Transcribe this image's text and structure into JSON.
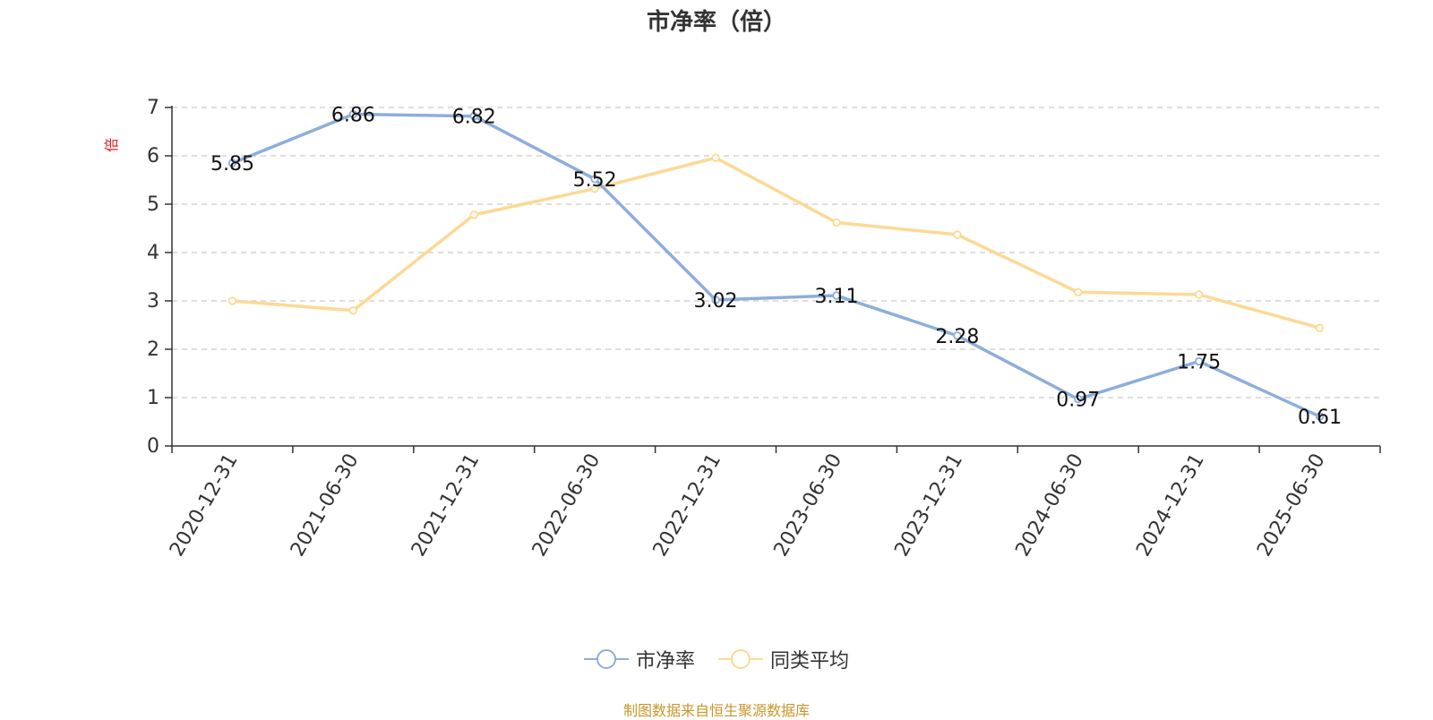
{
  "colors": {
    "series_pb": "#8eaedb",
    "series_avg": "#fcd994",
    "axis": "#333333",
    "grid": "#cccccc",
    "unit": "#e02020",
    "source": "#c8962a"
  },
  "chart_data": {
    "type": "line",
    "title": "市净率（倍）",
    "unit_label": "倍",
    "x": [
      "2020-12-31",
      "2021-06-30",
      "2021-12-31",
      "2022-06-30",
      "2022-12-31",
      "2023-06-30",
      "2023-12-31",
      "2024-06-30",
      "2024-12-31",
      "2025-06-30"
    ],
    "ylim": [
      0,
      7
    ],
    "yticks": [
      "0",
      "1",
      "2",
      "3",
      "4",
      "5",
      "6",
      "7"
    ],
    "grid": true,
    "legend_position": "bottom-center",
    "series": [
      {
        "name": "市净率",
        "values": [
          5.85,
          6.86,
          6.82,
          5.52,
          3.02,
          3.11,
          2.28,
          0.97,
          1.75,
          0.61
        ],
        "labels": [
          "5.85",
          "6.86",
          "6.82",
          "5.52",
          "3.02",
          "3.11",
          "2.28",
          "0.97",
          "1.75",
          "0.61"
        ]
      },
      {
        "name": "同类平均",
        "values": [
          3.0,
          2.8,
          4.78,
          5.32,
          5.96,
          4.62,
          4.37,
          3.18,
          3.13,
          2.44
        ]
      }
    ]
  },
  "source_note": "制图数据来自恒生聚源数据库"
}
